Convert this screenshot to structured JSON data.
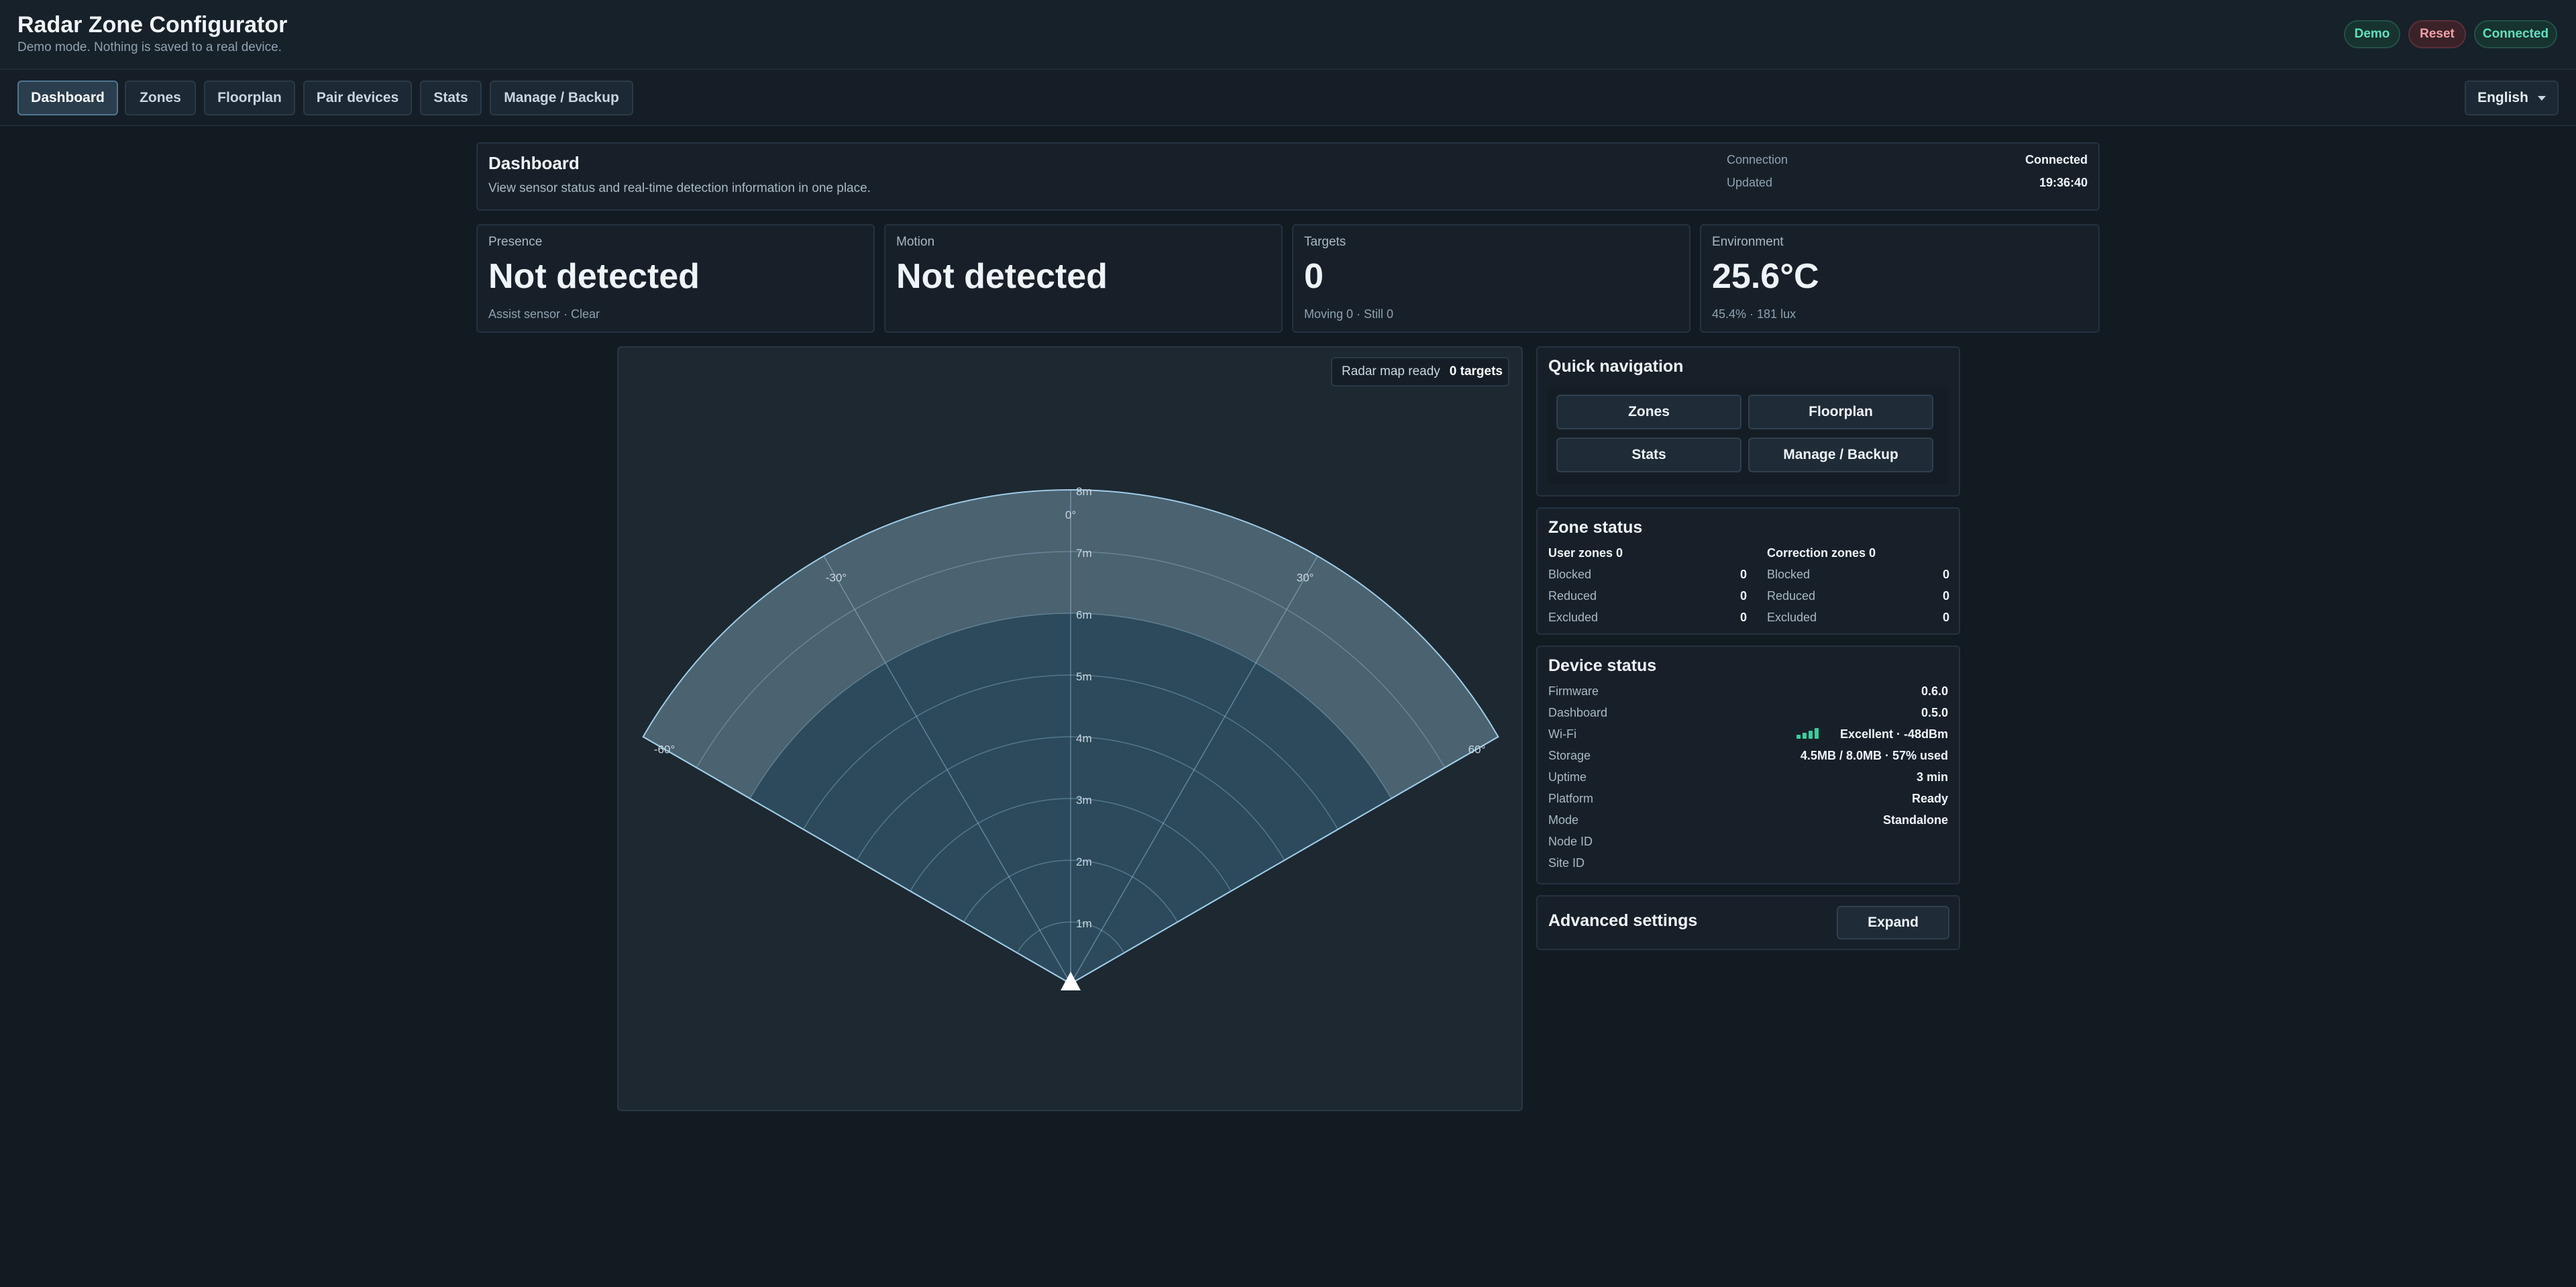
{
  "app": {
    "title": "Radar Zone Configurator",
    "subtitle": "Demo mode. Nothing is saved to a real device.",
    "badges": {
      "demo": "Demo",
      "reset": "Reset",
      "connected": "Connected"
    }
  },
  "nav": {
    "tabs": [
      "Dashboard",
      "Zones",
      "Floorplan",
      "Pair devices",
      "Stats",
      "Manage / Backup"
    ],
    "active": "Dashboard",
    "language": "English"
  },
  "dashboard": {
    "title": "Dashboard",
    "description": "View sensor status and real-time detection information in one place.",
    "connection_label": "Connection",
    "connection_value": "Connected",
    "updated_label": "Updated",
    "updated_value": "19:36:40"
  },
  "stats": [
    {
      "label": "Presence",
      "value": "Not detected",
      "sub": "Assist sensor · Clear"
    },
    {
      "label": "Motion",
      "value": "Not detected",
      "sub": ""
    },
    {
      "label": "Targets",
      "value": "0",
      "sub": "Moving 0 · Still 0"
    },
    {
      "label": "Environment",
      "value": "25.6°C",
      "sub": "45.4% · 181 lux"
    }
  ],
  "radar": {
    "status": "Radar map ready",
    "targets": "0 targets",
    "range_labels": [
      "1m",
      "2m",
      "3m",
      "4m",
      "5m",
      "6m",
      "7m",
      "8m"
    ],
    "angle_labels": [
      "-60°",
      "-30°",
      "0°",
      "30°",
      "60°"
    ],
    "colors": {
      "outer_band": "#4b6270",
      "inner": "#2c4a5b",
      "stroke": "#9fcbe6"
    }
  },
  "quick_nav": {
    "title": "Quick navigation",
    "buttons": [
      "Zones",
      "Floorplan",
      "Stats",
      "Manage / Backup"
    ]
  },
  "zone_status": {
    "title": "Zone status",
    "user": {
      "heading": "User zones 0",
      "rows": [
        {
          "label": "Blocked",
          "value": "0"
        },
        {
          "label": "Reduced",
          "value": "0"
        },
        {
          "label": "Excluded",
          "value": "0"
        }
      ]
    },
    "correction": {
      "heading": "Correction zones 0",
      "rows": [
        {
          "label": "Blocked",
          "value": "0"
        },
        {
          "label": "Reduced",
          "value": "0"
        },
        {
          "label": "Excluded",
          "value": "0"
        }
      ]
    }
  },
  "device_status": {
    "title": "Device status",
    "rows": [
      {
        "label": "Firmware",
        "value": "0.6.0"
      },
      {
        "label": "Dashboard",
        "value": "0.5.0"
      },
      {
        "label": "Wi-Fi",
        "value": "Excellent · -48dBm"
      },
      {
        "label": "Storage",
        "value": "4.5MB / 8.0MB · 57% used"
      },
      {
        "label": "Uptime",
        "value": "3 min"
      },
      {
        "label": "Platform",
        "value": "Ready"
      },
      {
        "label": "Mode",
        "value": "Standalone"
      },
      {
        "label": "Node ID",
        "value": ""
      },
      {
        "label": "Site ID",
        "value": ""
      }
    ],
    "wifi_signal_level": 1.0
  },
  "advanced": {
    "title": "Advanced settings",
    "button": "Expand"
  }
}
